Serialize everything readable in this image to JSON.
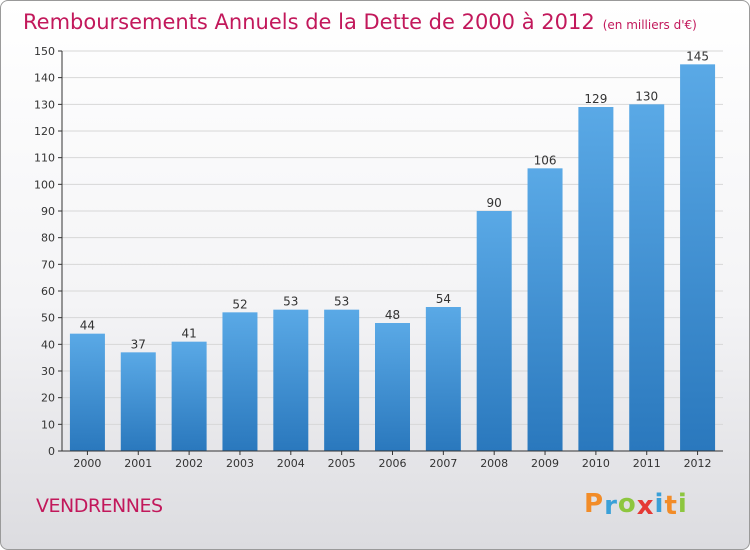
{
  "title": "Remboursements Annuels de la Dette de 2000 à 2012",
  "unit": "(en milliers d'€)",
  "commune": "VENDRENNES",
  "brand": {
    "letters": [
      {
        "char": "P",
        "color": "#f28c28"
      },
      {
        "char": "r",
        "color": "#3aa0d8"
      },
      {
        "char": "o",
        "color": "#8dc63f"
      },
      {
        "char": "x",
        "color": "#e53935"
      },
      {
        "char": "i",
        "color": "#3aa0d8"
      },
      {
        "char": "t",
        "color": "#f28c28"
      },
      {
        "char": "i",
        "color": "#8dc63f"
      }
    ]
  },
  "colors": {
    "bar_top": "#5aa9e6",
    "bar_bottom": "#2a78bd",
    "title": "#c2185b",
    "grid": "#d7d7d7",
    "axis": "#333333"
  },
  "chart_data": {
    "type": "bar",
    "categories": [
      "2000",
      "2001",
      "2002",
      "2003",
      "2004",
      "2005",
      "2006",
      "2007",
      "2008",
      "2009",
      "2010",
      "2011",
      "2012"
    ],
    "values": [
      44,
      37,
      41,
      52,
      53,
      53,
      48,
      54,
      90,
      106,
      129,
      130,
      145
    ],
    "ylim": [
      0,
      150
    ],
    "yticks": [
      0,
      10,
      20,
      30,
      40,
      50,
      60,
      70,
      80,
      90,
      100,
      110,
      120,
      130,
      140,
      150
    ],
    "grid": true,
    "xlabel": "",
    "ylabel": ""
  }
}
